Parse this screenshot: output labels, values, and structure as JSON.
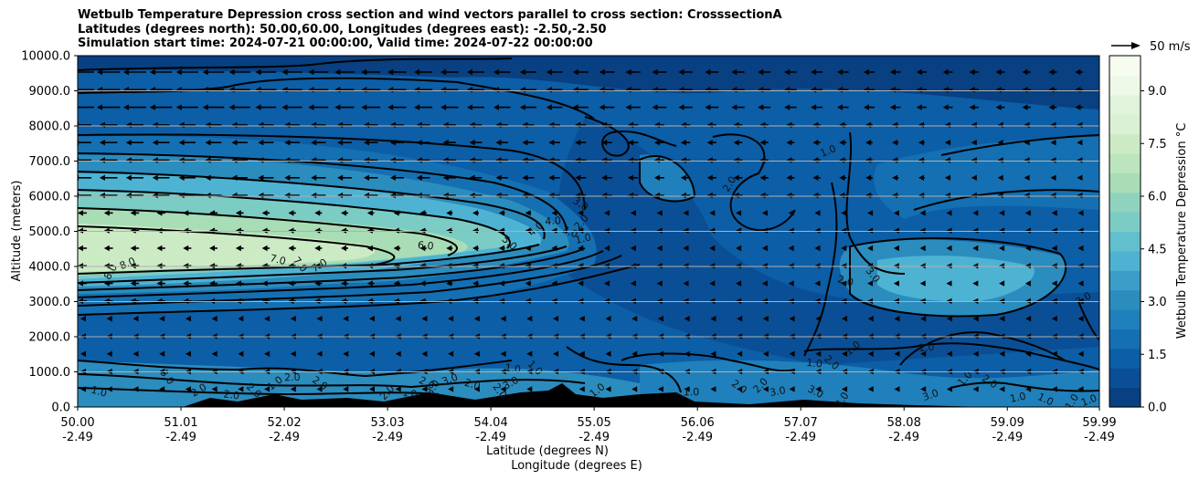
{
  "chart_data": {
    "type": "contour",
    "title": [
      "Wetbulb Temperature Depression cross section and wind vectors parallel to cross section: CrosssectionA",
      "Latitudes (degrees north): 50.00,60.00, Longitudes (degrees east): -2.50,-2.50",
      "Simulation start time: 2024-07-21 00:00:00, Valid time: 2024-07-22 00:00:00"
    ],
    "ylabel": "Altitude (meters)",
    "xlabel_lat": "Latitude (degrees N)",
    "xlabel_lon": "Longitude (degrees E)",
    "ylim": [
      0,
      10000
    ],
    "yticks": [
      "0.0",
      "1000.0",
      "2000.0",
      "3000.0",
      "4000.0",
      "5000.0",
      "6000.0",
      "7000.0",
      "8000.0",
      "9000.0",
      "10000.0"
    ],
    "ytick_values": [
      0,
      1000,
      2000,
      3000,
      4000,
      5000,
      6000,
      7000,
      8000,
      9000,
      10000
    ],
    "xlim": [
      50.0,
      59.99
    ],
    "xticks": [
      {
        "lat": "50.00",
        "lon": "-2.49",
        "value": 50.0
      },
      {
        "lat": "51.01",
        "lon": "-2.49",
        "value": 51.01
      },
      {
        "lat": "52.02",
        "lon": "-2.49",
        "value": 52.02
      },
      {
        "lat": "53.03",
        "lon": "-2.49",
        "value": 53.03
      },
      {
        "lat": "54.04",
        "lon": "-2.49",
        "value": 54.04
      },
      {
        "lat": "55.05",
        "lon": "-2.49",
        "value": 55.05
      },
      {
        "lat": "56.06",
        "lon": "-2.49",
        "value": 56.06
      },
      {
        "lat": "57.07",
        "lon": "-2.49",
        "value": 57.07
      },
      {
        "lat": "58.08",
        "lon": "-2.49",
        "value": 58.08
      },
      {
        "lat": "59.09",
        "lon": "-2.49",
        "value": 59.09
      },
      {
        "lat": "59.99",
        "lon": "-2.49",
        "value": 59.99
      }
    ],
    "grid_y": true,
    "colorbar": {
      "label": "Wetbulb Temperature Depression °C",
      "range": [
        0,
        10
      ],
      "ticks": [
        "0.0",
        "1.5",
        "3.0",
        "4.5",
        "6.0",
        "7.5",
        "9.0"
      ],
      "tick_values": [
        0,
        1.5,
        3,
        4.5,
        6,
        7.5,
        9
      ],
      "colors": [
        "#084081",
        "#0a4f95",
        "#0c5ea6",
        "#1470b2",
        "#1f80bb",
        "#2b8cbe",
        "#3b9ec8",
        "#4eb3d3",
        "#62bfcd",
        "#7bccc4",
        "#8fd3bf",
        "#a8ddb5",
        "#bce5bd",
        "#ccebc5",
        "#dbf1d5",
        "#e0f3db",
        "#eef9e8",
        "#f7fcf0"
      ]
    },
    "quiver_key": {
      "label": "50 m/s",
      "speed": 50
    },
    "contour_labels": [
      {
        "text": "8.0",
        "x": 50.35,
        "y": 3800
      },
      {
        "text": "8.0",
        "x": 50.5,
        "y": 4000
      },
      {
        "text": "7.0",
        "x": 51.95,
        "y": 4100
      },
      {
        "text": "7.0",
        "x": 52.15,
        "y": 4000
      },
      {
        "text": "7.0",
        "x": 52.38,
        "y": 3950
      },
      {
        "text": "6.0",
        "x": 53.4,
        "y": 4500
      },
      {
        "text": "5.0",
        "x": 54.2,
        "y": 4600
      },
      {
        "text": "4.0",
        "x": 54.5,
        "y": 5000
      },
      {
        "text": "4.0",
        "x": 54.65,
        "y": 5200
      },
      {
        "text": "3.0",
        "x": 54.9,
        "y": 5700
      },
      {
        "text": "2.0",
        "x": 54.95,
        "y": 5200
      },
      {
        "text": "1.0",
        "x": 54.95,
        "y": 4700
      },
      {
        "text": "2.0",
        "x": 54.8,
        "y": 4900
      },
      {
        "text": "2.0",
        "x": 56.4,
        "y": 6300
      },
      {
        "text": "1.0",
        "x": 57.35,
        "y": 7200
      },
      {
        "text": "2.0",
        "x": 57.5,
        "y": 3500
      },
      {
        "text": "3.0",
        "x": 57.75,
        "y": 3700
      },
      {
        "text": "3.0",
        "x": 59.85,
        "y": 3000
      },
      {
        "text": "1.0",
        "x": 57.2,
        "y": 1150
      },
      {
        "text": "2.0",
        "x": 57.35,
        "y": 1200
      },
      {
        "text": "1.0",
        "x": 57.6,
        "y": 1600
      },
      {
        "text": "1.0",
        "x": 58.3,
        "y": 1600
      },
      {
        "text": "2.0",
        "x": 58.9,
        "y": 650
      },
      {
        "text": "1.0",
        "x": 58.7,
        "y": 750
      },
      {
        "text": "1.0",
        "x": 59.2,
        "y": 180
      },
      {
        "text": "1.0",
        "x": 59.45,
        "y": 130
      },
      {
        "text": "1.0",
        "x": 59.75,
        "y": 100
      },
      {
        "text": "1.0",
        "x": 59.9,
        "y": 100
      },
      {
        "text": "1.0",
        "x": 50.2,
        "y": 350
      },
      {
        "text": "3.0",
        "x": 50.85,
        "y": 800
      },
      {
        "text": "2.0",
        "x": 51.2,
        "y": 400
      },
      {
        "text": "2.0",
        "x": 51.5,
        "y": 250
      },
      {
        "text": "2.0",
        "x": 51.7,
        "y": 400
      },
      {
        "text": "1.0",
        "x": 51.95,
        "y": 600
      },
      {
        "text": "2.0",
        "x": 52.1,
        "y": 750
      },
      {
        "text": "2.0",
        "x": 52.35,
        "y": 600
      },
      {
        "text": "2.0",
        "x": 53.05,
        "y": 350
      },
      {
        "text": "3.0",
        "x": 53.25,
        "y": 250
      },
      {
        "text": "2.0",
        "x": 53.4,
        "y": 600
      },
      {
        "text": "3.0",
        "x": 53.5,
        "y": 500
      },
      {
        "text": "3.0",
        "x": 53.65,
        "y": 700
      },
      {
        "text": "2.0",
        "x": 53.85,
        "y": 550
      },
      {
        "text": "2.0",
        "x": 54.1,
        "y": 400
      },
      {
        "text": "3.0",
        "x": 54.25,
        "y": 600
      },
      {
        "text": "1.0",
        "x": 54.25,
        "y": 1000
      },
      {
        "text": "1.0",
        "x": 54.45,
        "y": 1050
      },
      {
        "text": "1.0",
        "x": 55.1,
        "y": 400
      },
      {
        "text": "1.0",
        "x": 56.0,
        "y": 330
      },
      {
        "text": "2.0",
        "x": 56.45,
        "y": 500
      },
      {
        "text": "2.0",
        "x": 56.7,
        "y": 550
      },
      {
        "text": "3.0",
        "x": 56.85,
        "y": 350
      },
      {
        "text": "3.0",
        "x": 57.2,
        "y": 350
      },
      {
        "text": "2.0",
        "x": 57.5,
        "y": 150
      },
      {
        "text": "3.0",
        "x": 58.35,
        "y": 250
      }
    ]
  }
}
